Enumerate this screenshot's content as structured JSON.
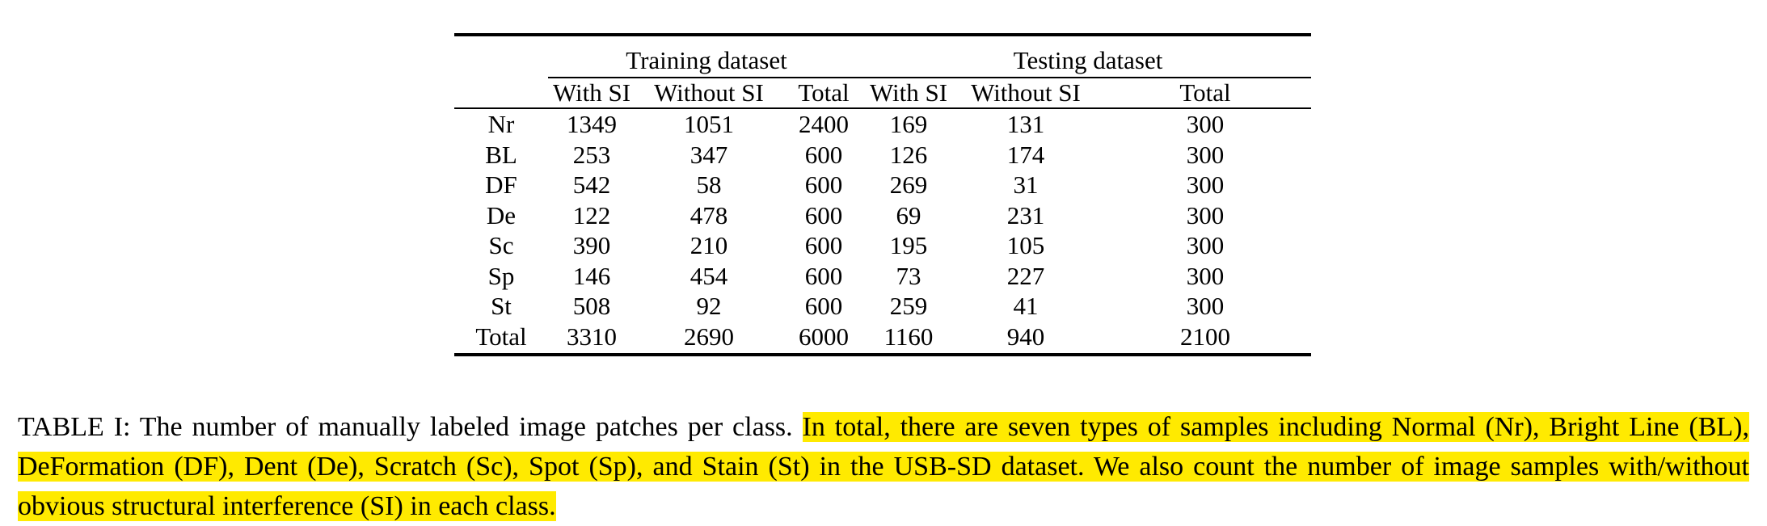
{
  "table": {
    "group_headers": [
      "Training dataset",
      "Testing dataset"
    ],
    "sub_headers": [
      "With SI",
      "Without SI",
      "Total",
      "With SI",
      "Without SI",
      "Total"
    ],
    "rows": [
      {
        "label": "Nr",
        "values": [
          "1349",
          "1051",
          "2400",
          "169",
          "131",
          "300"
        ]
      },
      {
        "label": "BL",
        "values": [
          "253",
          "347",
          "600",
          "126",
          "174",
          "300"
        ]
      },
      {
        "label": "DF",
        "values": [
          "542",
          "58",
          "600",
          "269",
          "31",
          "300"
        ]
      },
      {
        "label": "De",
        "values": [
          "122",
          "478",
          "600",
          "69",
          "231",
          "300"
        ]
      },
      {
        "label": "Sc",
        "values": [
          "390",
          "210",
          "600",
          "195",
          "105",
          "300"
        ]
      },
      {
        "label": "Sp",
        "values": [
          "146",
          "454",
          "600",
          "73",
          "227",
          "300"
        ]
      },
      {
        "label": "St",
        "values": [
          "508",
          "92",
          "600",
          "259",
          "41",
          "300"
        ]
      },
      {
        "label": "Total",
        "values": [
          "3310",
          "2690",
          "6000",
          "1160",
          "940",
          "2100"
        ]
      }
    ]
  },
  "caption": {
    "label": "TABLE I:",
    "plain": " The number of manually labeled image patches per class. ",
    "highlighted": "In total, there are seven types of samples including Normal (Nr), Bright Line (BL), DeFormation (DF), Dent (De), Scratch (Sc), Spot (Sp), and Stain (St) in the USB-SD dataset. We also count the number of image samples with/without obvious structural interference (SI) in each class.",
    "highlight_color": "#ffea00"
  }
}
